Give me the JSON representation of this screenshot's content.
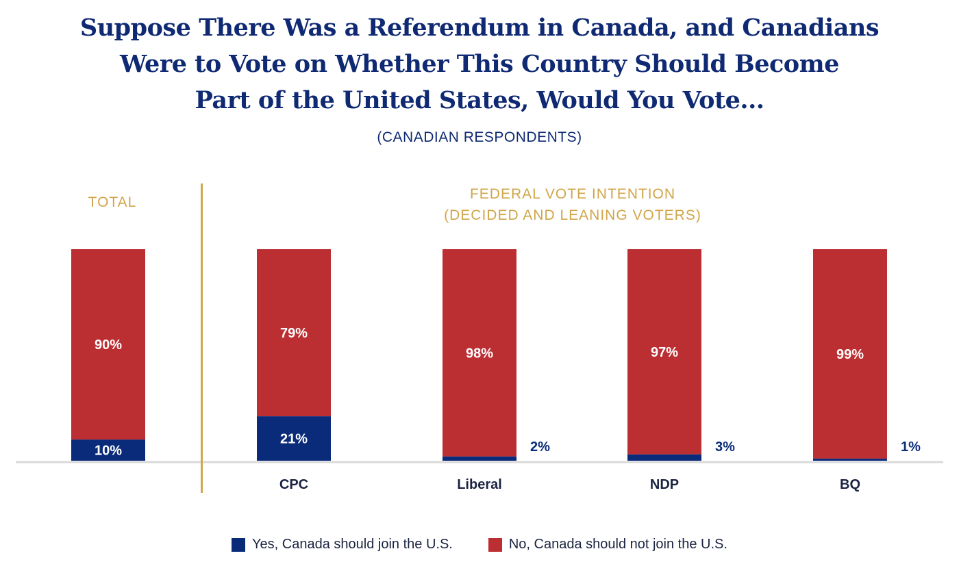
{
  "title_lines": [
    "Suppose There Was a Referendum in Canada, and Canadians",
    "Were to Vote on Whether This Country Should Become",
    "Part of the United States, Would You Vote..."
  ],
  "subtitle": "(CANADIAN RESPONDENTS)",
  "group_labels": {
    "total": "TOTAL",
    "federal_line1": "FEDERAL VOTE INTENTION",
    "federal_line2": "(DECIDED AND LEANING VOTERS)"
  },
  "colors": {
    "yes": "#0a2b7a",
    "no": "#bb2f33",
    "title": "#0f2a73",
    "accent_gold": "#d1a54a",
    "axis": "#d9d9d9"
  },
  "legend": [
    {
      "key": "yes",
      "label": "Yes, Canada should join the U.S."
    },
    {
      "key": "no",
      "label": "No, Canada should not join the U.S."
    }
  ],
  "chart_data": {
    "type": "bar",
    "stacked": true,
    "title": "Suppose There Was a Referendum in Canada, and Canadians Were to Vote on Whether This Country Should Become Part of the United States, Would You Vote...",
    "subtitle": "(CANADIAN RESPONDENTS)",
    "categories": [
      "Total",
      "CPC",
      "Liberal",
      "NDP",
      "BQ"
    ],
    "category_labels": [
      "",
      "CPC",
      "Liberal",
      "NDP",
      "BQ"
    ],
    "series": [
      {
        "name": "Yes, Canada should join the U.S.",
        "values": [
          10,
          21,
          2,
          3,
          1
        ],
        "labels": [
          "10%",
          "21%",
          "2%",
          "3%",
          "1%"
        ]
      },
      {
        "name": "No, Canada should not join the U.S.",
        "values": [
          90,
          79,
          98,
          97,
          99
        ],
        "labels": [
          "90%",
          "79%",
          "98%",
          "97%",
          "99%"
        ]
      }
    ],
    "ylim": [
      0,
      100
    ],
    "xlabel": "",
    "ylabel": "",
    "grid": false,
    "legend_position": "bottom"
  }
}
